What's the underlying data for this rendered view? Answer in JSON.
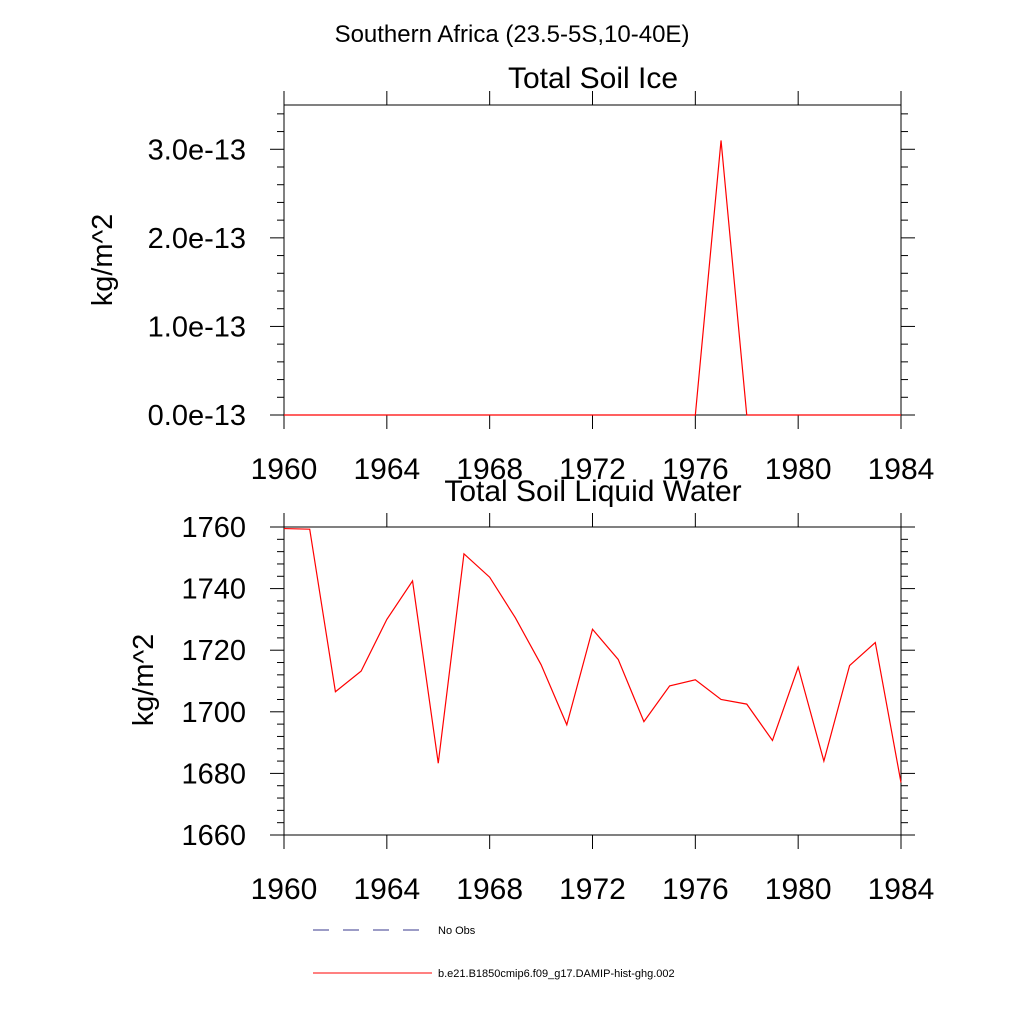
{
  "figure": {
    "suptitle": "Southern Africa (23.5-5S,10-40E)"
  },
  "chart_data": [
    {
      "type": "line",
      "title": "Total Soil Ice",
      "xlabel": "",
      "ylabel": "kg/m^2",
      "xlim": [
        1960,
        1984
      ],
      "ylim": [
        0,
        3.5e-13
      ],
      "xticks": [
        1960,
        1964,
        1968,
        1972,
        1976,
        1980,
        1984
      ],
      "xtick_labels": [
        "1960",
        "1964",
        "1968",
        "1972",
        "1976",
        "1980",
        "1984"
      ],
      "yticks": [
        0,
        1e-13,
        2e-13,
        3e-13
      ],
      "ytick_labels": [
        "0.0e-13",
        "1.0e-13",
        "2.0e-13",
        "3.0e-13"
      ],
      "grid": false,
      "series": [
        {
          "name": "b.e21.B1850cmip6.f09_g17.DAMIP-hist-ghg.002",
          "color": "#ff0000",
          "x": [
            1960,
            1961,
            1962,
            1963,
            1964,
            1965,
            1966,
            1967,
            1968,
            1969,
            1970,
            1971,
            1972,
            1973,
            1974,
            1975,
            1976,
            1977,
            1978,
            1979,
            1980,
            1981,
            1982,
            1983,
            1984
          ],
          "values": [
            0,
            0,
            0,
            0,
            0,
            0,
            0,
            0,
            0,
            0,
            0,
            0,
            0,
            0,
            0,
            0,
            0,
            3.1e-13,
            0,
            0,
            0,
            0,
            0,
            0,
            0
          ]
        }
      ]
    },
    {
      "type": "line",
      "title": "Total Soil Liquid Water",
      "xlabel": "",
      "ylabel": "kg/m^2",
      "xlim": [
        1960,
        1984
      ],
      "ylim": [
        1660,
        1760
      ],
      "xticks": [
        1960,
        1964,
        1968,
        1972,
        1976,
        1980,
        1984
      ],
      "xtick_labels": [
        "1960",
        "1964",
        "1968",
        "1972",
        "1976",
        "1980",
        "1984"
      ],
      "yticks": [
        1660,
        1680,
        1700,
        1720,
        1740,
        1760
      ],
      "ytick_labels": [
        "1660",
        "1680",
        "1700",
        "1720",
        "1740",
        "1760"
      ],
      "grid": false,
      "series": [
        {
          "name": "b.e21.B1850cmip6.f09_g17.DAMIP-hist-ghg.002",
          "color": "#ff0000",
          "x": [
            1960,
            1961,
            1962,
            1963,
            1964,
            1965,
            1966,
            1967,
            1968,
            1969,
            1970,
            1971,
            1972,
            1973,
            1974,
            1975,
            1976,
            1977,
            1978,
            1979,
            1980,
            1981,
            1982,
            1983,
            1984
          ],
          "values": [
            1759.5,
            1759.3,
            1706.5,
            1713.2,
            1730.0,
            1742.5,
            1683.3,
            1751.3,
            1743.7,
            1730.5,
            1715.3,
            1695.8,
            1726.8,
            1717.0,
            1696.8,
            1708.4,
            1710.4,
            1704.0,
            1702.5,
            1690.7,
            1714.5,
            1684.0,
            1715.0,
            1722.5,
            1677.0
          ]
        }
      ]
    }
  ],
  "legend": {
    "placement": "bottom",
    "items": [
      {
        "label": "No Obs",
        "color": "#3a3a8c",
        "style": "dashed"
      },
      {
        "label": "b.e21.B1850cmip6.f09_g17.DAMIP-hist-ghg.002",
        "color": "#ff0000",
        "style": "solid"
      }
    ]
  }
}
